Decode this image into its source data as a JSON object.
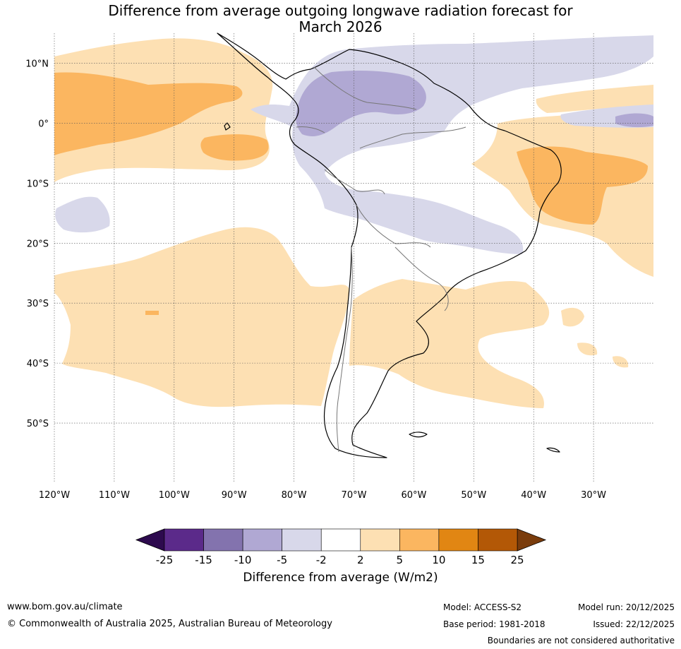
{
  "title": {
    "line1": "Difference from average outgoing longwave radiation forecast for",
    "line2": "March 2026"
  },
  "map": {
    "lat_labels": [
      "10°N",
      "0°",
      "10°S",
      "20°S",
      "30°S",
      "40°S",
      "50°S"
    ],
    "lat_values": [
      10,
      0,
      -10,
      -20,
      -30,
      -40,
      -50
    ],
    "lon_labels": [
      "120°W",
      "110°W",
      "100°W",
      "90°W",
      "80°W",
      "70°W",
      "60°W",
      "50°W",
      "40°W",
      "30°W"
    ],
    "lon_values": [
      -120,
      -110,
      -100,
      -90,
      -80,
      -70,
      -60,
      -50,
      -40,
      -30
    ],
    "lon_range": [
      -120,
      -20
    ],
    "lat_range": [
      -60,
      15
    ]
  },
  "legend": {
    "ticks": [
      "-25",
      "-15",
      "-10",
      "-5",
      "-2",
      "2",
      "5",
      "10",
      "15",
      "25"
    ],
    "colors": [
      "#5b2a8a",
      "#8373ae",
      "#b0a8d3",
      "#d8d8ea",
      "#ffffff",
      "#fde0b3",
      "#fbb660",
      "#e18613",
      "#b35806"
    ],
    "under_color": "#2d0a4e",
    "over_color": "#7a3c0c",
    "title": "Difference from average (W/m2)"
  },
  "footer": {
    "website": "www.bom.gov.au/climate",
    "copyright": "© Commonwealth of Australia 2025, Australian Bureau of Meteorology",
    "model": "Model: ACCESS-S2",
    "base_period": "Base period: 1981-2018",
    "model_run": "Model run: 20/12/2025",
    "issued": "Issued: 22/12/2025",
    "disclaimer": "Boundaries are not considered authoritative"
  }
}
